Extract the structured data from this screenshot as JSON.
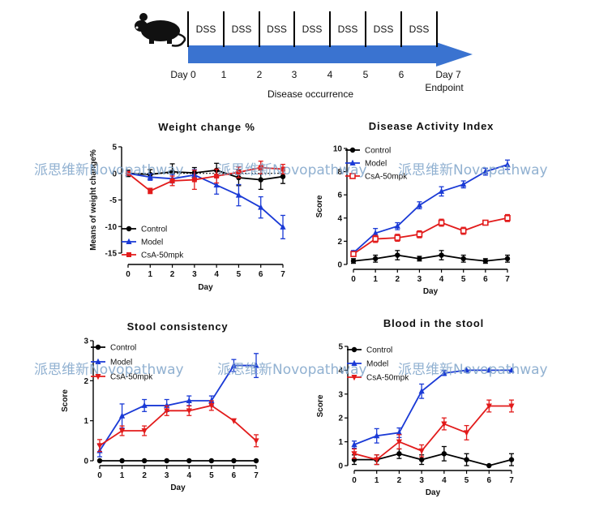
{
  "colors": {
    "control": "#000000",
    "model": "#1a3ad6",
    "csa": "#e21b1b",
    "arrow": "#3a73d0",
    "watermark": "#7ea3c9"
  },
  "timeline": {
    "icon": "mouse-icon",
    "dss_labels": [
      "DSS",
      "DSS",
      "DSS",
      "DSS",
      "DSS",
      "DSS",
      "DSS"
    ],
    "day_labels": [
      "Day 0",
      "1",
      "2",
      "3",
      "4",
      "5",
      "6",
      "Day 7"
    ],
    "endpoint": "Endpoint",
    "caption": "Disease occurrence"
  },
  "watermarks": [
    "派思维新Novopathway",
    "派思维新Novopathway",
    "派思维新Novopathway",
    "派思维新Novopathway",
    "派思维新Novopathway",
    "派思维新Novopathway"
  ],
  "chart_data": [
    {
      "type": "line",
      "title": "Weight change %",
      "xlabel": "Day",
      "ylabel": "Means of weight change%",
      "x": [
        0,
        1,
        2,
        3,
        4,
        5,
        6,
        7
      ],
      "xlim": [
        0,
        7
      ],
      "ylim": [
        -15,
        5
      ],
      "yticks": [
        5,
        0,
        -5,
        -10,
        -15
      ],
      "legend_position": "bottom-left",
      "series": [
        {
          "name": "Control",
          "key": "control",
          "marker": "circle",
          "values": [
            0,
            -0.2,
            0.3,
            0.1,
            0.6,
            -0.8,
            -1.2,
            -0.6
          ],
          "errors": [
            0.6,
            0.9,
            1.5,
            1.0,
            1.3,
            1.5,
            1.8,
            1.3
          ]
        },
        {
          "name": "Model",
          "key": "model",
          "marker": "triangle-up",
          "values": [
            0,
            -0.7,
            -1.0,
            -0.3,
            -2.2,
            -4.1,
            -6.4,
            -10.1
          ],
          "errors": [
            0.3,
            0.6,
            0.8,
            1.0,
            1.7,
            2.0,
            2.0,
            2.2
          ]
        },
        {
          "name": "CsA-50mpk",
          "key": "csa",
          "marker": "square",
          "values": [
            0,
            -3.3,
            -1.4,
            -1.2,
            -0.5,
            0.2,
            1.1,
            0.8
          ],
          "errors": [
            0.3,
            0.5,
            0.9,
            1.8,
            1.3,
            1.0,
            1.2,
            0.9
          ]
        }
      ]
    },
    {
      "type": "line",
      "title": "Disease Activity Index",
      "xlabel": "Day",
      "ylabel": "Score",
      "x": [
        0,
        1,
        2,
        3,
        4,
        5,
        6,
        7
      ],
      "xlim": [
        0,
        7
      ],
      "ylim": [
        0,
        10
      ],
      "yticks": [
        0,
        2,
        4,
        6,
        8,
        10
      ],
      "legend_position": "top-left",
      "series": [
        {
          "name": "Control",
          "key": "control",
          "marker": "circle",
          "values": [
            0.3,
            0.5,
            0.8,
            0.5,
            0.8,
            0.5,
            0.3,
            0.5
          ],
          "errors": [
            0.2,
            0.3,
            0.4,
            0.2,
            0.4,
            0.3,
            0.2,
            0.3
          ]
        },
        {
          "name": "Model",
          "key": "model",
          "marker": "triangle-up",
          "values": [
            1.0,
            2.7,
            3.3,
            5.1,
            6.3,
            6.9,
            8.0,
            8.6
          ],
          "errors": [
            0.2,
            0.4,
            0.3,
            0.3,
            0.4,
            0.3,
            0.3,
            0.4
          ]
        },
        {
          "name": "CsA-50mpk",
          "key": "csa",
          "marker": "square-open",
          "values": [
            0.9,
            2.2,
            2.3,
            2.6,
            3.6,
            2.9,
            3.6,
            4.0
          ],
          "errors": [
            0.2,
            0.3,
            0.3,
            0.3,
            0.3,
            0.3,
            0.2,
            0.3
          ]
        }
      ]
    },
    {
      "type": "line",
      "title": "Stool consistency",
      "xlabel": "Day",
      "ylabel": "Score",
      "x": [
        0,
        1,
        2,
        3,
        4,
        5,
        6,
        7
      ],
      "xlim": [
        0,
        7
      ],
      "ylim": [
        0,
        3
      ],
      "yticks": [
        0,
        1,
        2,
        3
      ],
      "legend_position": "top-left",
      "series": [
        {
          "name": "Control",
          "key": "control",
          "marker": "circle",
          "values": [
            0,
            0,
            0,
            0,
            0,
            0,
            0,
            0
          ],
          "errors": [
            0,
            0,
            0,
            0,
            0,
            0,
            0,
            0
          ]
        },
        {
          "name": "Model",
          "key": "model",
          "marker": "triangle-up",
          "values": [
            0.25,
            1.12,
            1.38,
            1.38,
            1.5,
            1.5,
            2.38,
            2.38
          ],
          "errors": [
            0.15,
            0.3,
            0.15,
            0.15,
            0.12,
            0.12,
            0.15,
            0.3
          ]
        },
        {
          "name": "CsA-50mpk",
          "key": "csa",
          "marker": "triangle-down",
          "values": [
            0.38,
            0.75,
            0.75,
            1.25,
            1.25,
            1.38,
            1.0,
            0.5
          ],
          "errors": [
            0.15,
            0.12,
            0.12,
            0.12,
            0.12,
            0.12,
            0,
            0.15
          ]
        }
      ]
    },
    {
      "type": "line",
      "title": "Blood in the stool",
      "xlabel": "Day",
      "ylabel": "Score",
      "x": [
        0,
        1,
        2,
        3,
        4,
        5,
        6,
        7
      ],
      "xlim": [
        0,
        7
      ],
      "ylim": [
        0,
        5
      ],
      "yticks": [
        0,
        1,
        2,
        3,
        4,
        5
      ],
      "legend_position": "top-left",
      "series": [
        {
          "name": "Control",
          "key": "control",
          "marker": "circle",
          "values": [
            0.25,
            0.25,
            0.5,
            0.25,
            0.5,
            0.25,
            0,
            0.25
          ],
          "errors": [
            0.2,
            0.2,
            0.2,
            0.2,
            0.3,
            0.25,
            0,
            0.25
          ]
        },
        {
          "name": "Model",
          "key": "model",
          "marker": "triangle-up",
          "values": [
            0.88,
            1.25,
            1.38,
            3.12,
            3.88,
            4.0,
            4.0,
            4.0
          ],
          "errors": [
            0.15,
            0.3,
            0.2,
            0.3,
            0.1,
            0,
            0,
            0
          ]
        },
        {
          "name": "CsA-50mpk",
          "key": "csa",
          "marker": "triangle-down",
          "values": [
            0.5,
            0.25,
            1.0,
            0.62,
            1.75,
            1.38,
            2.5,
            2.5
          ],
          "errors": [
            0.2,
            0.2,
            0.3,
            0.25,
            0.25,
            0.3,
            0.25,
            0.25
          ]
        }
      ]
    }
  ]
}
